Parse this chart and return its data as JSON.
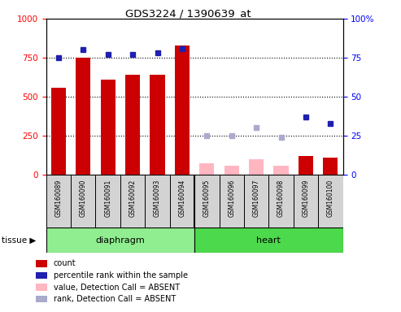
{
  "title": "GDS3224 / 1390639_at",
  "samples": [
    "GSM160089",
    "GSM160090",
    "GSM160091",
    "GSM160092",
    "GSM160093",
    "GSM160094",
    "GSM160095",
    "GSM160096",
    "GSM160097",
    "GSM160098",
    "GSM160099",
    "GSM160100"
  ],
  "count_values": [
    560,
    750,
    610,
    640,
    640,
    830,
    null,
    null,
    null,
    null,
    120,
    110
  ],
  "count_absent_values": [
    null,
    null,
    null,
    null,
    null,
    null,
    75,
    55,
    100,
    55,
    null,
    null
  ],
  "rank_values": [
    75,
    80,
    77,
    77,
    78,
    81,
    null,
    null,
    null,
    null,
    37,
    33
  ],
  "rank_absent_values": [
    null,
    null,
    null,
    null,
    null,
    null,
    25,
    25,
    30,
    24,
    null,
    null
  ],
  "ylim_left": [
    0,
    1000
  ],
  "ylim_right": [
    0,
    100
  ],
  "yticks_left": [
    0,
    250,
    500,
    750,
    1000
  ],
  "yticks_right": [
    0,
    25,
    50,
    75,
    100
  ],
  "bar_color_present": "#CC0000",
  "bar_color_absent": "#FFB6C1",
  "rank_color_present": "#1F1FB0",
  "rank_color_absent": "#AAAACC",
  "diaphragm_color": "#90EE90",
  "heart_color": "#4CD94C",
  "legend_items": [
    {
      "label": "count",
      "color": "#CC0000"
    },
    {
      "label": "percentile rank within the sample",
      "color": "#1F1FB0"
    },
    {
      "label": "value, Detection Call = ABSENT",
      "color": "#FFB6C1"
    },
    {
      "label": "rank, Detection Call = ABSENT",
      "color": "#AAAACC"
    }
  ]
}
